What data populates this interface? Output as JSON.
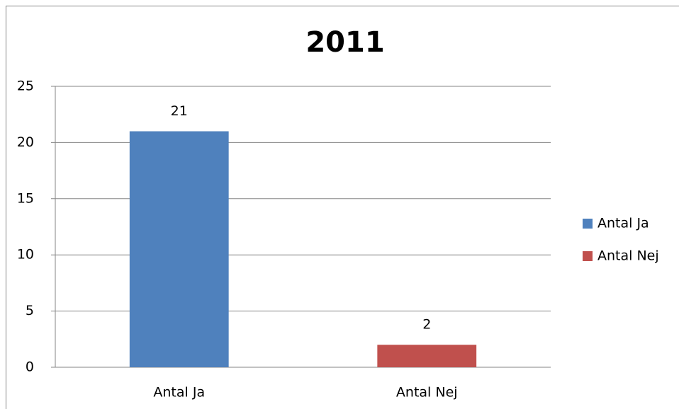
{
  "chart_data": {
    "type": "bar",
    "title": "2011",
    "categories": [
      "Antal Ja",
      "Antal Nej"
    ],
    "values": [
      21,
      2
    ],
    "colors": [
      "#4f81bd",
      "#c0504d"
    ],
    "ylim": [
      0,
      25
    ],
    "yticks": [
      0,
      5,
      10,
      15,
      20,
      25
    ],
    "grid": true,
    "legend": "right"
  }
}
